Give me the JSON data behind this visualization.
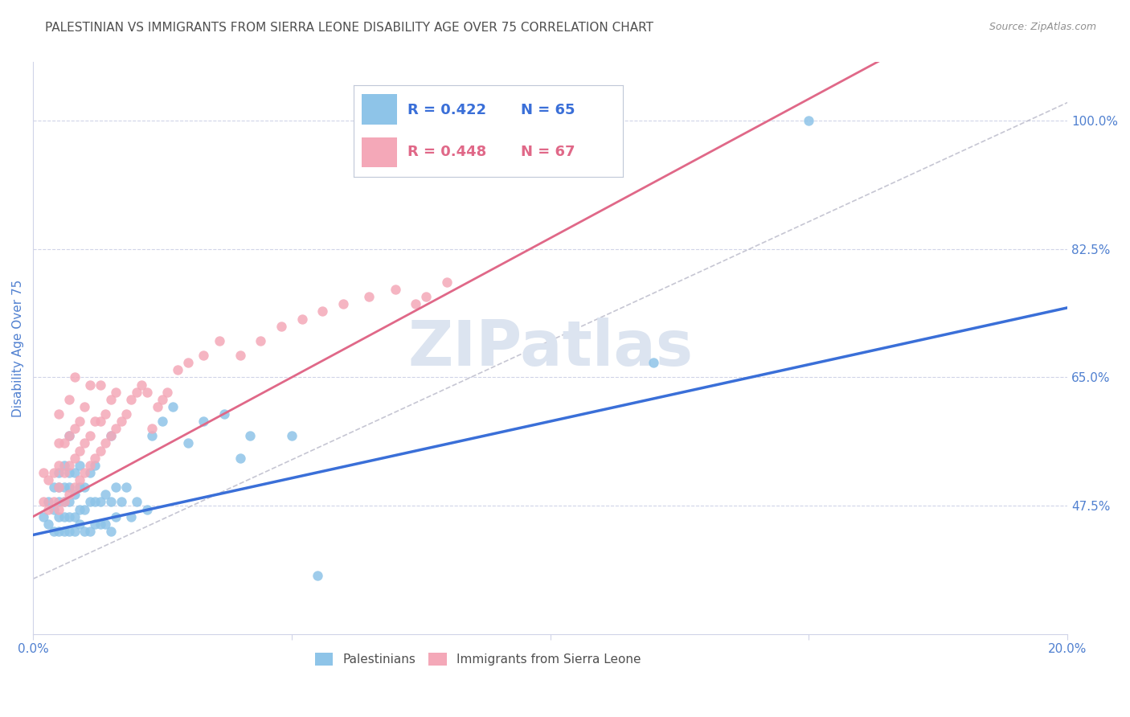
{
  "title": "PALESTINIAN VS IMMIGRANTS FROM SIERRA LEONE DISABILITY AGE OVER 75 CORRELATION CHART",
  "source": "Source: ZipAtlas.com",
  "ylabel": "Disability Age Over 75",
  "xlim": [
    0.0,
    0.2
  ],
  "ylim": [
    0.3,
    1.08
  ],
  "yticks": [
    0.475,
    0.65,
    0.825,
    1.0
  ],
  "ytick_labels": [
    "47.5%",
    "65.0%",
    "82.5%",
    "100.0%"
  ],
  "xticks": [
    0.0,
    0.05,
    0.1,
    0.15,
    0.2
  ],
  "xtick_labels": [
    "0.0%",
    "",
    "",
    "",
    "20.0%"
  ],
  "legend_r1": "R = 0.422",
  "legend_n1": "N = 65",
  "legend_r2": "R = 0.448",
  "legend_n2": "N = 67",
  "blue_color": "#8ec4e8",
  "pink_color": "#f4a8b8",
  "line_blue": "#3a6fd8",
  "line_pink": "#e06888",
  "line_dashed_color": "#b8b8c8",
  "axis_label_color": "#5080d0",
  "tick_color": "#5080d0",
  "title_color": "#505050",
  "grid_color": "#d0d4e8",
  "watermark_color": "#dce4f0",
  "background_color": "#ffffff",
  "title_fontsize": 11,
  "axis_tick_fontsize": 11,
  "blue_line_intercept": 0.435,
  "blue_line_slope": 1.55,
  "pink_line_intercept": 0.46,
  "pink_line_slope": 3.8,
  "blue_scatter_x": [
    0.002,
    0.003,
    0.003,
    0.004,
    0.004,
    0.004,
    0.005,
    0.005,
    0.005,
    0.005,
    0.005,
    0.006,
    0.006,
    0.006,
    0.006,
    0.006,
    0.007,
    0.007,
    0.007,
    0.007,
    0.007,
    0.007,
    0.008,
    0.008,
    0.008,
    0.008,
    0.009,
    0.009,
    0.009,
    0.009,
    0.01,
    0.01,
    0.01,
    0.011,
    0.011,
    0.011,
    0.012,
    0.012,
    0.012,
    0.013,
    0.013,
    0.014,
    0.014,
    0.015,
    0.015,
    0.015,
    0.016,
    0.016,
    0.017,
    0.018,
    0.019,
    0.02,
    0.022,
    0.023,
    0.025,
    0.027,
    0.03,
    0.033,
    0.037,
    0.04,
    0.042,
    0.05,
    0.055,
    0.12,
    0.15
  ],
  "blue_scatter_y": [
    0.46,
    0.45,
    0.48,
    0.44,
    0.47,
    0.5,
    0.44,
    0.46,
    0.48,
    0.5,
    0.52,
    0.44,
    0.46,
    0.48,
    0.5,
    0.53,
    0.44,
    0.46,
    0.48,
    0.5,
    0.52,
    0.57,
    0.44,
    0.46,
    0.49,
    0.52,
    0.45,
    0.47,
    0.5,
    0.53,
    0.44,
    0.47,
    0.5,
    0.44,
    0.48,
    0.52,
    0.45,
    0.48,
    0.53,
    0.45,
    0.48,
    0.45,
    0.49,
    0.44,
    0.48,
    0.57,
    0.46,
    0.5,
    0.48,
    0.5,
    0.46,
    0.48,
    0.47,
    0.57,
    0.59,
    0.61,
    0.56,
    0.59,
    0.6,
    0.54,
    0.57,
    0.57,
    0.38,
    0.67,
    1.0
  ],
  "pink_scatter_x": [
    0.002,
    0.002,
    0.003,
    0.003,
    0.004,
    0.004,
    0.005,
    0.005,
    0.005,
    0.005,
    0.005,
    0.006,
    0.006,
    0.006,
    0.007,
    0.007,
    0.007,
    0.007,
    0.008,
    0.008,
    0.008,
    0.008,
    0.009,
    0.009,
    0.009,
    0.01,
    0.01,
    0.01,
    0.011,
    0.011,
    0.011,
    0.012,
    0.012,
    0.013,
    0.013,
    0.013,
    0.014,
    0.014,
    0.015,
    0.015,
    0.016,
    0.016,
    0.017,
    0.018,
    0.019,
    0.02,
    0.021,
    0.022,
    0.023,
    0.024,
    0.025,
    0.026,
    0.028,
    0.03,
    0.033,
    0.036,
    0.04,
    0.044,
    0.048,
    0.052,
    0.056,
    0.06,
    0.065,
    0.07,
    0.074,
    0.076,
    0.08
  ],
  "pink_scatter_y": [
    0.48,
    0.52,
    0.47,
    0.51,
    0.48,
    0.52,
    0.47,
    0.5,
    0.53,
    0.56,
    0.6,
    0.48,
    0.52,
    0.56,
    0.49,
    0.53,
    0.57,
    0.62,
    0.5,
    0.54,
    0.58,
    0.65,
    0.51,
    0.55,
    0.59,
    0.52,
    0.56,
    0.61,
    0.53,
    0.57,
    0.64,
    0.54,
    0.59,
    0.55,
    0.59,
    0.64,
    0.56,
    0.6,
    0.57,
    0.62,
    0.58,
    0.63,
    0.59,
    0.6,
    0.62,
    0.63,
    0.64,
    0.63,
    0.58,
    0.61,
    0.62,
    0.63,
    0.66,
    0.67,
    0.68,
    0.7,
    0.68,
    0.7,
    0.72,
    0.73,
    0.74,
    0.75,
    0.76,
    0.77,
    0.75,
    0.76,
    0.78
  ]
}
